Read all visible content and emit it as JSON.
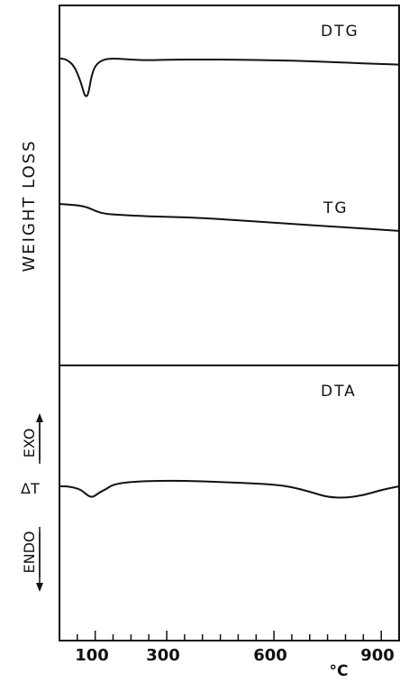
{
  "chart_data": {
    "type": "line",
    "x_unit": "°C",
    "xlim": [
      0,
      950
    ],
    "x_ticks": [
      100,
      300,
      600,
      900
    ],
    "x_tick_labels": [
      "100",
      "300",
      "600",
      "900"
    ],
    "panels": [
      {
        "name": "top",
        "ylabel": "WEIGHT LOSS",
        "series": [
          {
            "name": "DTG",
            "x": [
              0,
              20,
              40,
              55,
              65,
              70,
              75,
              80,
              85,
              90,
              100,
              120,
              150,
              200,
              250,
              300,
              400,
              500,
              600,
              700,
              800,
              900,
              950
            ],
            "y": [
              0.5,
              0.9,
              3.0,
              7.0,
              11.0,
              13.2,
              13.8,
              13.0,
              10.0,
              6.5,
              3.0,
              1.0,
              0.5,
              1.0,
              1.2,
              1.0,
              0.9,
              1.0,
              1.2,
              1.5,
              2.0,
              2.5,
              2.7
            ]
          },
          {
            "name": "TG",
            "x": [
              0,
              50,
              80,
              100,
              120,
              150,
              200,
              300,
              400,
              500,
              600,
              700,
              800,
              900,
              950
            ],
            "y": [
              0,
              0.5,
              1.5,
              3.0,
              4.0,
              4.5,
              5.0,
              5.5,
              6.0,
              7.0,
              8.0,
              9.0,
              10.0,
              11.0,
              11.5
            ]
          }
        ]
      },
      {
        "name": "bottom",
        "ylabel_exo": "EXO",
        "ylabel_delta": "ΔT",
        "ylabel_endo": "ENDO",
        "series": [
          {
            "name": "DTA",
            "x": [
              0,
              20,
              40,
              60,
              70,
              80,
              90,
              100,
              110,
              130,
              150,
              200,
              300,
              400,
              500,
              600,
              650,
              700,
              750,
              800,
              850,
              900,
              950
            ],
            "y": [
              0,
              0,
              0.3,
              1.0,
              1.8,
              2.6,
              3.0,
              2.6,
              1.8,
              0.8,
              -0.5,
              -1.3,
              -1.6,
              -1.4,
              -1.0,
              -0.5,
              0.2,
              1.5,
              3.0,
              3.2,
              2.5,
              1.0,
              0.0
            ]
          }
        ]
      }
    ]
  }
}
